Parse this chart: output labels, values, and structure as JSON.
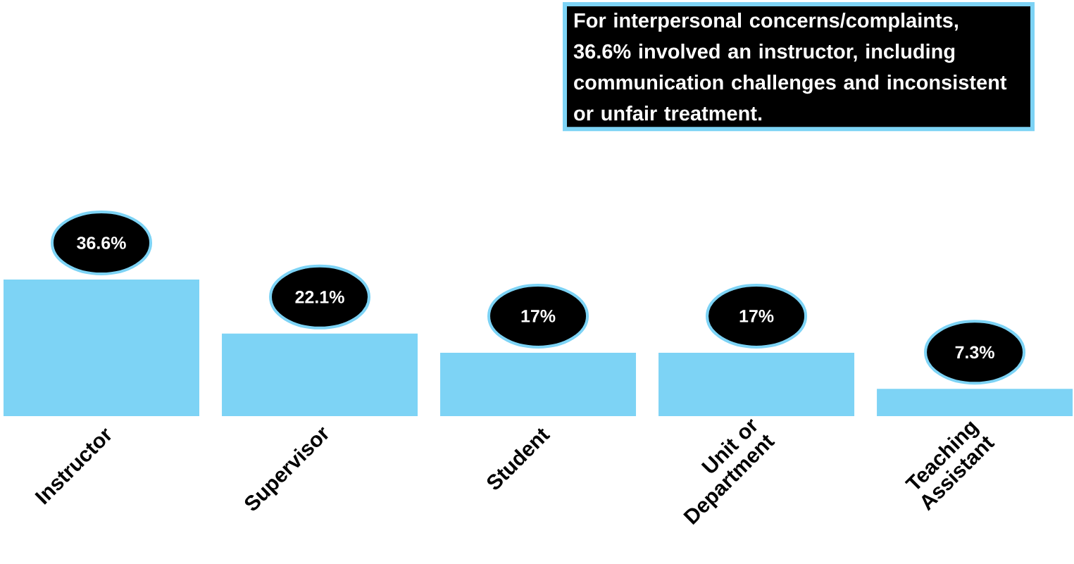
{
  "chart_data": {
    "type": "bar",
    "categories": [
      "Instructor",
      "Supervisor",
      "Student",
      "Unit or Department",
      "Teaching Assistant"
    ],
    "values": [
      36.6,
      22.1,
      17,
      17,
      7.3
    ],
    "value_labels": [
      "36.6%",
      "22.1%",
      "17%",
      "17%",
      "7.3%"
    ],
    "color": "#7dd3f5",
    "annotations": [
      "For interpersonal concerns/complaints, 36.6% involved an instructor, including communication challenges and inconsistent or unfair treatment."
    ]
  }
}
